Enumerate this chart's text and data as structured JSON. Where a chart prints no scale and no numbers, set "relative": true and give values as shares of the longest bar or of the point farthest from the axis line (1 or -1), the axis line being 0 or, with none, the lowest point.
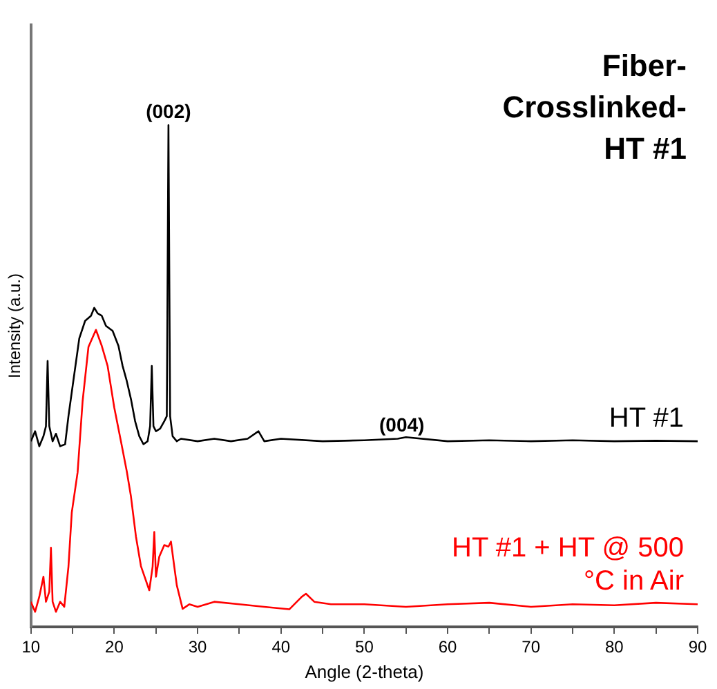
{
  "chart_data": {
    "type": "line",
    "title": "Fiber-Crosslinked-HT #1",
    "xlabel": "Angle (2-theta)",
    "ylabel": "Intensity (a.u.)",
    "relative": true,
    "xlim": [
      10,
      90
    ],
    "xticks": [
      10,
      {
        "value": 15,
        "label": null
      },
      20,
      {
        "value": 25,
        "label": null
      },
      30,
      {
        "value": 35,
        "label": null
      },
      40,
      {
        "value": 45,
        "label": null
      },
      50,
      {
        "value": 55,
        "label": null
      },
      60,
      {
        "value": 65,
        "label": null
      },
      70,
      {
        "value": 75,
        "label": null
      },
      80,
      {
        "value": 85,
        "label": null
      },
      90
    ],
    "grid": false,
    "legend": false,
    "marker": "none",
    "line_style": "solid",
    "tick_labels": "x",
    "annotations": [
      {
        "text": "(002)",
        "x": 26.5,
        "y": 1
      },
      {
        "text": "(004)",
        "x": 54.5,
        "y": 0.375
      }
    ],
    "series": [
      {
        "name": "HT #1",
        "color": "#000000",
        "x": [
          10,
          10.5,
          11,
          11.5,
          11.8,
          12.0,
          12.2,
          12.6,
          13,
          13.5,
          14.1,
          14.5,
          15,
          15.8,
          16.5,
          17.2,
          17.6,
          18,
          18.5,
          19,
          19.8,
          20.5,
          21,
          21.5,
          22,
          22.5,
          23,
          23.5,
          24,
          24.3,
          24.5,
          24.7,
          25,
          25.5,
          26,
          26.3,
          26.5,
          26.7,
          27,
          27.5,
          28,
          30,
          32,
          34,
          36,
          37.3,
          38,
          40,
          45,
          50,
          54,
          55,
          60,
          65,
          70,
          75,
          80,
          85,
          90
        ],
        "values": [
          0.37,
          0.39,
          0.36,
          0.38,
          0.4,
          0.53,
          0.4,
          0.37,
          0.385,
          0.36,
          0.364,
          0.42,
          0.48,
          0.575,
          0.61,
          0.62,
          0.636,
          0.625,
          0.62,
          0.6,
          0.59,
          0.56,
          0.52,
          0.49,
          0.454,
          0.41,
          0.38,
          0.364,
          0.37,
          0.4,
          0.52,
          0.4,
          0.39,
          0.395,
          0.41,
          0.42,
          1,
          0.42,
          0.38,
          0.37,
          0.375,
          0.37,
          0.375,
          0.37,
          0.375,
          0.39,
          0.37,
          0.375,
          0.37,
          0.372,
          0.375,
          0.378,
          0.37,
          0.372,
          0.37,
          0.372,
          0.37,
          0.371,
          0.37
        ]
      },
      {
        "name": "HT #1 + HT @ 500 °C in Air",
        "color": "#ff0000",
        "x": [
          10,
          10.5,
          11,
          11.5,
          11.8,
          12.2,
          12.4,
          12.6,
          13,
          13.5,
          14,
          14.5,
          14.9,
          15.6,
          16.2,
          16.9,
          17.8,
          18.5,
          19.2,
          20,
          20.8,
          21.5,
          22,
          22.6,
          23.2,
          24.2,
          24.6,
          24.8,
          25,
          25.4,
          26,
          26.5,
          26.8,
          27.2,
          27.5,
          28.2,
          29,
          30,
          32,
          35,
          38,
          41,
          42.5,
          43,
          44,
          46,
          50,
          55,
          60,
          65,
          70,
          75,
          80,
          85,
          90
        ],
        "values": [
          0.05,
          0.03,
          0.06,
          0.1,
          0.05,
          0.07,
          0.158,
          0.05,
          0.03,
          0.05,
          0.04,
          0.12,
          0.228,
          0.308,
          0.45,
          0.558,
          0.592,
          0.56,
          0.52,
          0.437,
          0.37,
          0.31,
          0.26,
          0.18,
          0.121,
          0.073,
          0.12,
          0.189,
          0.1,
          0.14,
          0.163,
          0.16,
          0.17,
          0.12,
          0.083,
          0.036,
          0.045,
          0.04,
          0.05,
          0.045,
          0.04,
          0.035,
          0.06,
          0.066,
          0.05,
          0.045,
          0.045,
          0.04,
          0.045,
          0.048,
          0.04,
          0.045,
          0.043,
          0.048,
          0.045
        ]
      }
    ]
  }
}
